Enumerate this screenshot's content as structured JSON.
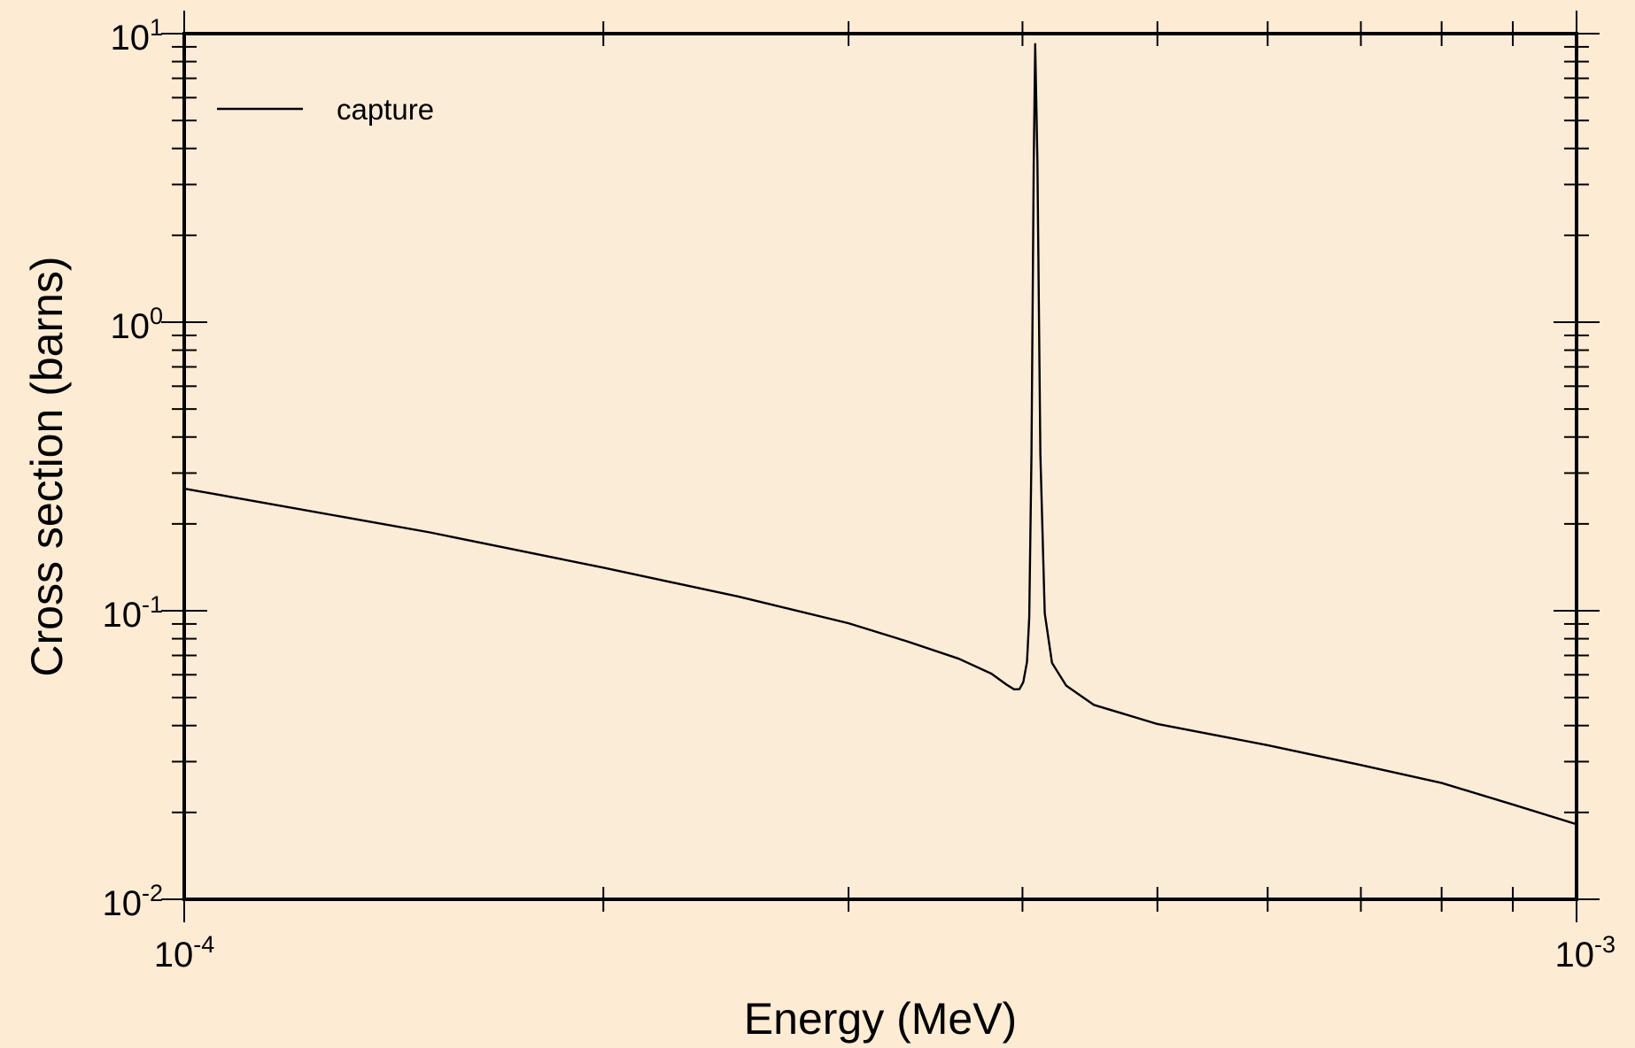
{
  "colors": {
    "page_background": "#fdebd3",
    "plot_background": "#fbecd8",
    "line": "#000000"
  },
  "chart_data": {
    "type": "line",
    "title": "",
    "xlabel": "Energy (MeV)",
    "ylabel": "Cross section (barns)",
    "xscale": "log",
    "yscale": "log",
    "xlim": [
      0.0001,
      0.001
    ],
    "ylim": [
      0.01,
      10
    ],
    "grid": false,
    "legend": {
      "placement": "top-left",
      "entries": [
        "capture"
      ]
    },
    "x_ticks": [
      {
        "value": 0.0001,
        "base": "10",
        "exp": "-4"
      },
      {
        "value": 0.001,
        "base": "10",
        "exp": "-3"
      }
    ],
    "y_ticks": [
      {
        "value": 0.01,
        "base": "10",
        "exp": "-2"
      },
      {
        "value": 0.1,
        "base": "10",
        "exp": "-1"
      },
      {
        "value": 1,
        "base": "10",
        "exp": "0"
      },
      {
        "value": 10,
        "base": "10",
        "exp": "1"
      }
    ],
    "series": [
      {
        "name": "capture",
        "x": [
          0.0001,
          0.00015,
          0.0002,
          0.00025,
          0.0003,
          0.00033,
          0.00036,
          0.00038,
          0.0003895,
          0.0003945,
          0.000398,
          0.0004005,
          0.000403,
          0.0004045,
          0.000406,
          0.0004075,
          0.0004085,
          0.00041,
          0.000412,
          0.000415,
          0.00042,
          0.00043,
          0.00045,
          0.0005,
          0.0006,
          0.0007,
          0.0008,
          0.0009,
          0.001
        ],
        "y": [
          0.265,
          0.187,
          0.141,
          0.112,
          0.0905,
          0.0785,
          0.0682,
          0.0605,
          0.0555,
          0.0534,
          0.0535,
          0.0565,
          0.0665,
          0.095,
          0.35,
          3.5,
          9.2,
          3.6,
          0.35,
          0.098,
          0.066,
          0.055,
          0.0472,
          0.0405,
          0.0342,
          0.0292,
          0.0253,
          0.0213,
          0.0182
        ]
      }
    ]
  }
}
